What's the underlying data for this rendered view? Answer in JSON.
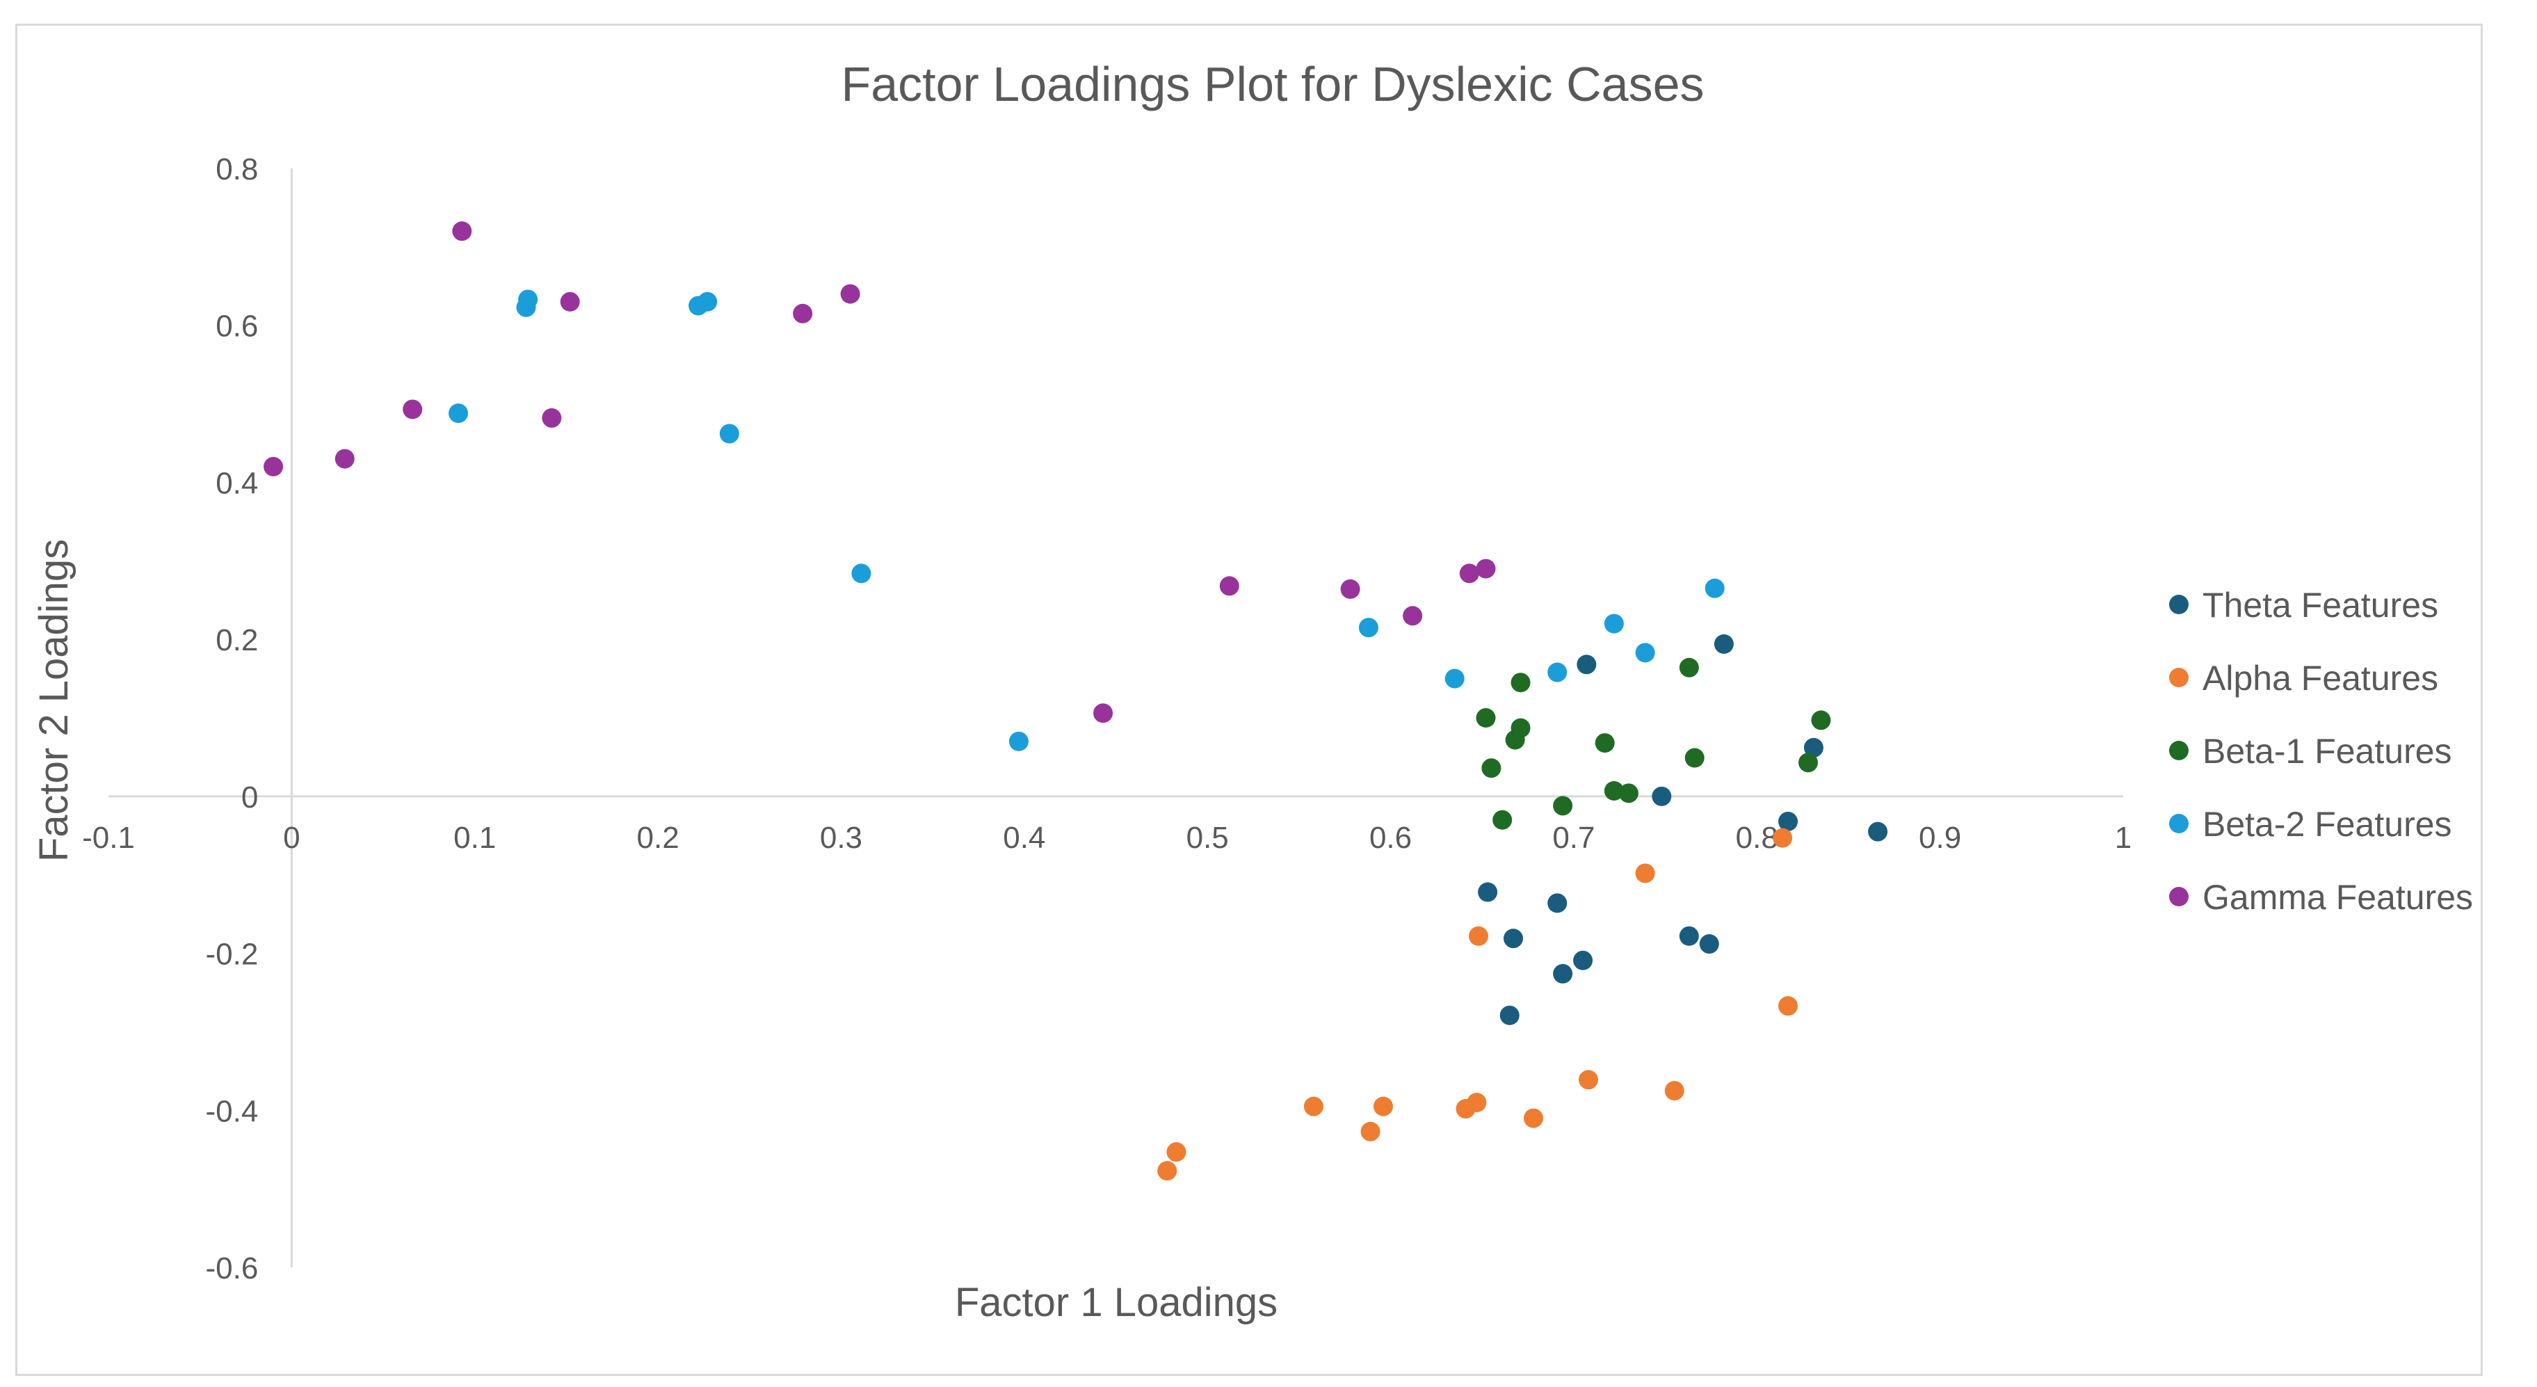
{
  "chart_data": {
    "type": "scatter",
    "title": "Factor Loadings Plot for Dyslexic Cases",
    "xlabel": "Factor 1 Loadings",
    "ylabel": "Factor 2 Loadings",
    "xlim": [
      -0.1,
      1.0
    ],
    "ylim": [
      -0.6,
      0.8
    ],
    "x_ticks": [
      -0.1,
      0,
      0.1,
      0.2,
      0.3,
      0.4,
      0.5,
      0.6,
      0.7,
      0.8,
      0.9,
      1
    ],
    "x_tick_labels": [
      "-0.1",
      "0",
      "0.1",
      "0.2",
      "0.3",
      "0.4",
      "0.5",
      "0.6",
      "0.7",
      "0.8",
      "0.9",
      "1"
    ],
    "y_ticks": [
      0.8,
      0.6,
      0.4,
      0.2,
      0,
      -0.2,
      -0.4,
      -0.6
    ],
    "y_tick_labels": [
      "0.8",
      "0.6",
      "0.4",
      "0.2",
      "0",
      "-0.2",
      "-0.4",
      "-0.6"
    ],
    "grid": false,
    "legend_position": "right",
    "series": [
      {
        "name": "Theta Features",
        "color": "#1a5c7e",
        "points": [
          [
            0.707,
            0.168
          ],
          [
            0.782,
            0.194
          ],
          [
            0.831,
            0.062
          ],
          [
            0.748,
            0.0
          ],
          [
            0.817,
            -0.032
          ],
          [
            0.866,
            -0.045
          ],
          [
            0.653,
            -0.122
          ],
          [
            0.691,
            -0.136
          ],
          [
            0.667,
            -0.181
          ],
          [
            0.763,
            -0.178
          ],
          [
            0.774,
            -0.188
          ],
          [
            0.705,
            -0.209
          ],
          [
            0.694,
            -0.226
          ],
          [
            0.665,
            -0.279
          ]
        ]
      },
      {
        "name": "Alpha Features",
        "color": "#ee7d31",
        "points": [
          [
            0.814,
            -0.053
          ],
          [
            0.739,
            -0.098
          ],
          [
            0.648,
            -0.178
          ],
          [
            0.817,
            -0.267
          ],
          [
            0.708,
            -0.361
          ],
          [
            0.755,
            -0.375
          ],
          [
            0.558,
            -0.395
          ],
          [
            0.596,
            -0.395
          ],
          [
            0.647,
            -0.39
          ],
          [
            0.641,
            -0.398
          ],
          [
            0.678,
            -0.41
          ],
          [
            0.589,
            -0.427
          ],
          [
            0.483,
            -0.453
          ],
          [
            0.478,
            -0.477
          ]
        ]
      },
      {
        "name": "Beta-1 Features",
        "color": "#1f6b24",
        "points": [
          [
            0.763,
            0.164
          ],
          [
            0.671,
            0.145
          ],
          [
            0.835,
            0.097
          ],
          [
            0.652,
            0.1
          ],
          [
            0.671,
            0.087
          ],
          [
            0.668,
            0.072
          ],
          [
            0.717,
            0.068
          ],
          [
            0.766,
            0.049
          ],
          [
            0.828,
            0.043
          ],
          [
            0.655,
            0.036
          ],
          [
            0.722,
            0.007
          ],
          [
            0.73,
            0.004
          ],
          [
            0.694,
            -0.012
          ],
          [
            0.661,
            -0.03
          ]
        ]
      },
      {
        "name": "Beta-2 Features",
        "color": "#1b9dd9",
        "points": [
          [
            0.129,
            0.633
          ],
          [
            0.128,
            0.623
          ],
          [
            0.227,
            0.63
          ],
          [
            0.222,
            0.625
          ],
          [
            0.091,
            0.488
          ],
          [
            0.239,
            0.462
          ],
          [
            0.311,
            0.284
          ],
          [
            0.777,
            0.265
          ],
          [
            0.722,
            0.22
          ],
          [
            0.588,
            0.215
          ],
          [
            0.739,
            0.183
          ],
          [
            0.691,
            0.158
          ],
          [
            0.635,
            0.15
          ],
          [
            0.397,
            0.07
          ]
        ]
      },
      {
        "name": "Gamma Features",
        "color": "#98339c",
        "points": [
          [
            0.093,
            0.72
          ],
          [
            0.305,
            0.64
          ],
          [
            0.152,
            0.63
          ],
          [
            0.279,
            0.615
          ],
          [
            0.066,
            0.493
          ],
          [
            0.142,
            0.482
          ],
          [
            0.029,
            0.43
          ],
          [
            -0.01,
            0.42
          ],
          [
            0.652,
            0.29
          ],
          [
            0.643,
            0.284
          ],
          [
            0.512,
            0.268
          ],
          [
            0.578,
            0.264
          ],
          [
            0.612,
            0.23
          ],
          [
            0.443,
            0.106
          ]
        ]
      }
    ]
  }
}
